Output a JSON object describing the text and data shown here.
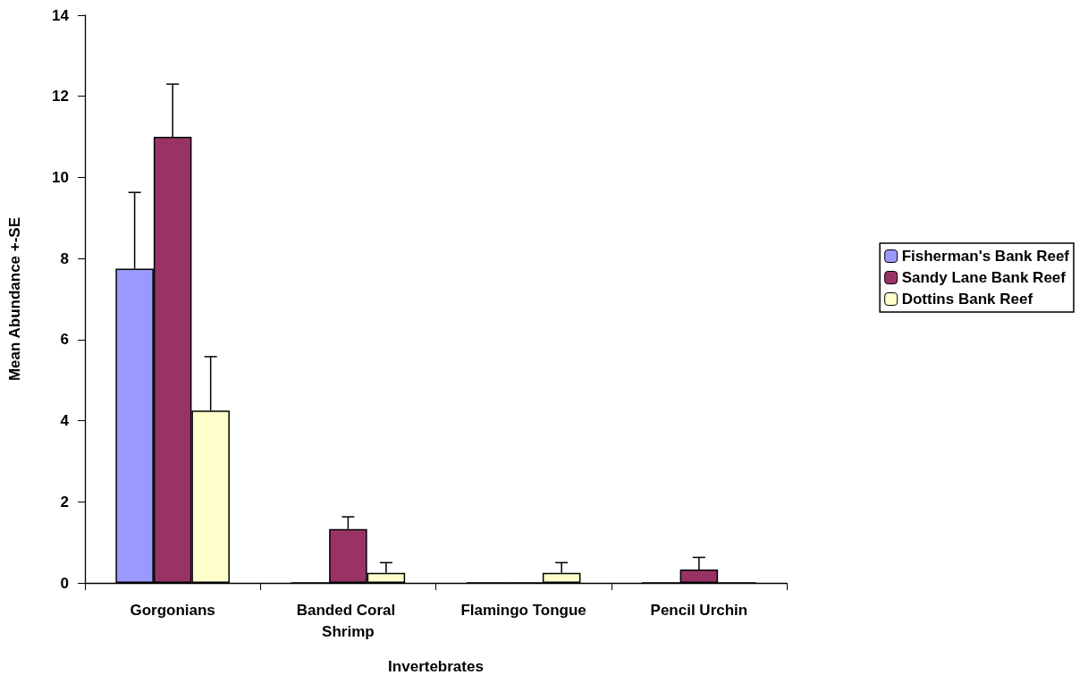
{
  "chart_data": {
    "type": "bar",
    "xlabel": "Invertebrates",
    "ylabel": "Mean Abundance +-SE",
    "categories": [
      "Gorgonians",
      "Banded Coral Shrimp",
      "Flamingo Tongue",
      "Pencil Urchin"
    ],
    "series": [
      {
        "name": "Fisherman's Bank Reef",
        "color": "#9999ff",
        "values": [
          7.75,
          0,
          0,
          0
        ],
        "errors": [
          [
            7.75,
            9.63
          ],
          null,
          null,
          null
        ]
      },
      {
        "name": "Sandy Lane Bank Reef",
        "color": "#993366",
        "values": [
          11,
          1.33,
          0,
          0.33
        ],
        "errors": [
          [
            11,
            12.3
          ],
          [
            1.33,
            1.63
          ],
          null,
          [
            0.33,
            0.63
          ]
        ]
      },
      {
        "name": "Dottins Bank Reef",
        "color": "#ffffcc",
        "values": [
          4.25,
          0.25,
          0.25,
          0
        ],
        "errors": [
          [
            4.25,
            5.58
          ],
          [
            0.25,
            0.5
          ],
          [
            0.25,
            0.5
          ],
          null
        ]
      }
    ],
    "ylim": [
      0,
      14
    ],
    "yticks": [
      0,
      2,
      4,
      6,
      8,
      10,
      12,
      14
    ],
    "grid": false,
    "legend": "right"
  }
}
